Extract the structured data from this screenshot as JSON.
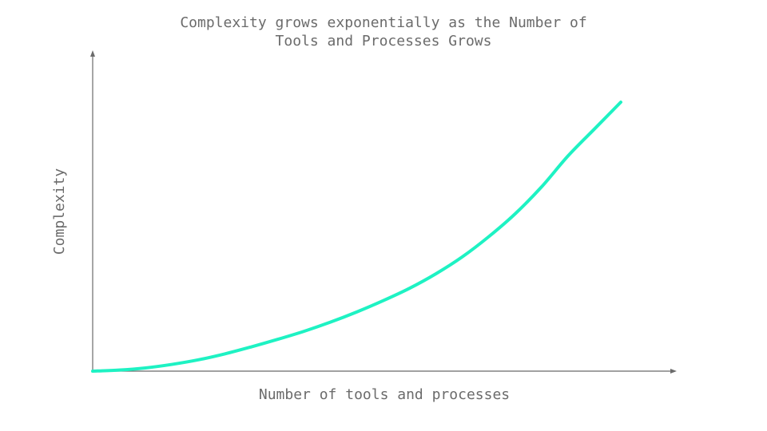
{
  "chart_data": {
    "type": "line",
    "title_lines": [
      "Complexity grows exponentially as the Number of",
      "Tools and Processes Grows"
    ],
    "xlabel": "Number of tools and processes",
    "ylabel": "Complexity",
    "xlim": [
      0,
      1
    ],
    "ylim": [
      0,
      1
    ],
    "grid": false,
    "legend": "none",
    "series_color": "#1ef2c3",
    "axis_color": "#6b6b6b",
    "series": [
      {
        "x": [
          0,
          0.05,
          0.1,
          0.15,
          0.2,
          0.25,
          0.3,
          0.35,
          0.4,
          0.45,
          0.5,
          0.55,
          0.6,
          0.65,
          0.7,
          0.75,
          0.8,
          0.85,
          0.9,
          0.95,
          0.98,
          1.0
        ],
        "y": [
          0,
          0.004,
          0.012,
          0.025,
          0.042,
          0.064,
          0.09,
          0.118,
          0.148,
          0.182,
          0.22,
          0.262,
          0.308,
          0.362,
          0.425,
          0.5,
          0.585,
          0.685,
          0.8,
          0.9,
          0.96,
          1.0
        ]
      }
    ]
  }
}
